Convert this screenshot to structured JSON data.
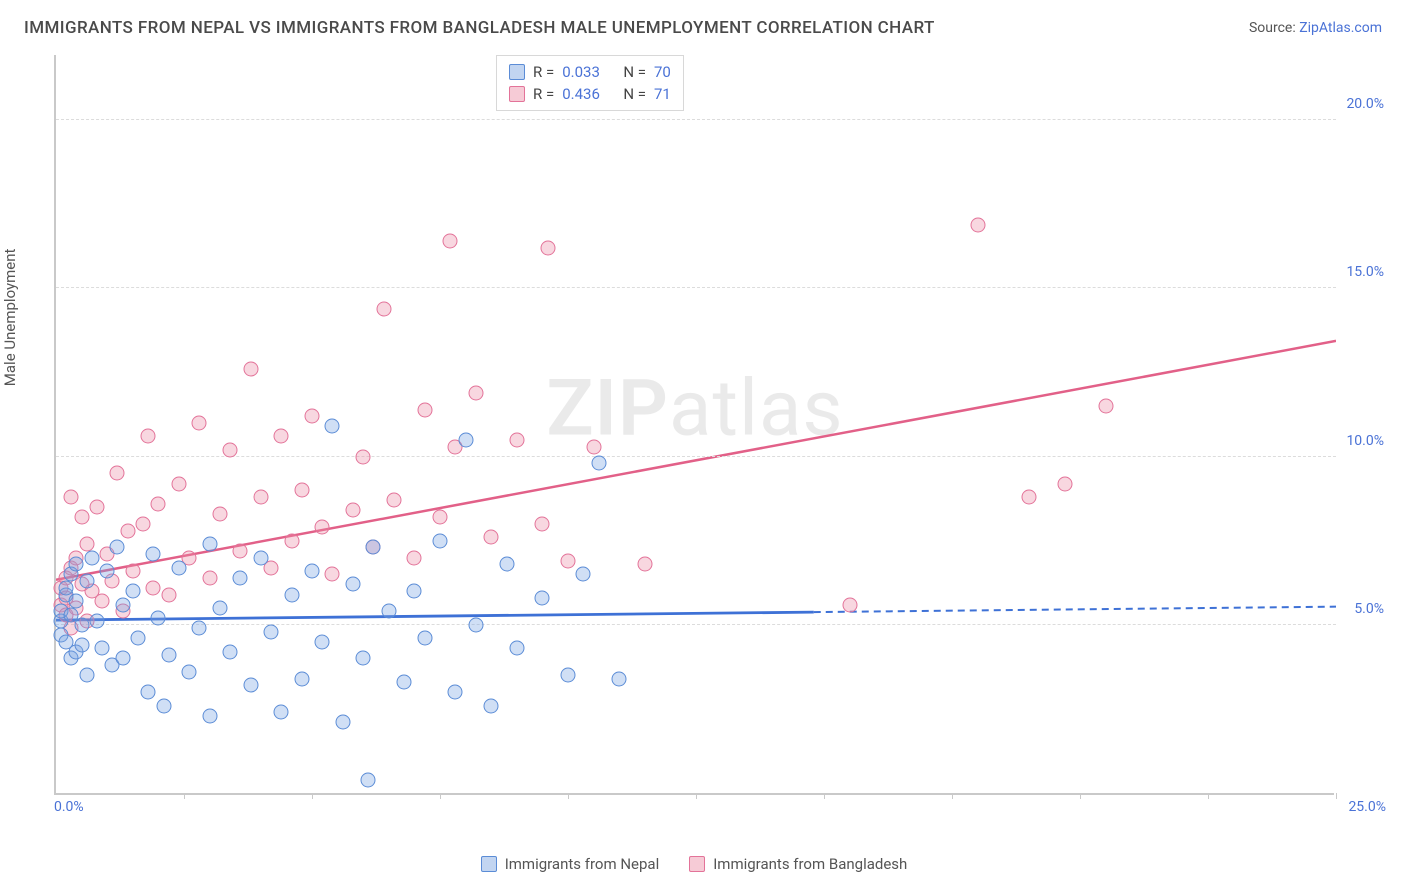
{
  "title": "IMMIGRANTS FROM NEPAL VS IMMIGRANTS FROM BANGLADESH MALE UNEMPLOYMENT CORRELATION CHART",
  "source_label": "Source: ",
  "source_name": "ZipAtlas.com",
  "ylabel": "Male Unemployment",
  "watermark_bold": "ZIP",
  "watermark_rest": "atlas",
  "chart": {
    "type": "scatter",
    "xlim": [
      0,
      25
    ],
    "ylim": [
      0,
      22
    ],
    "x_origin_label": "0.0%",
    "x_max_label": "25.0%",
    "x_tick_step": 2.5,
    "y_ticks": [
      5,
      10,
      15,
      20
    ],
    "y_tick_labels": [
      "5.0%",
      "10.0%",
      "15.0%",
      "20.0%"
    ],
    "grid_color": "#dcdcdc",
    "axis_color": "#c9c9c9",
    "background_color": "#ffffff",
    "label_fontsize": 15,
    "tick_fontsize": 14,
    "tick_color": "#4a72d6",
    "series_a": {
      "name": "Immigrants from Nepal",
      "fill": "rgba(120,162,225,0.35)",
      "stroke": "#5b8cd6",
      "marker_radius": 7.5,
      "R": "0.033",
      "N": "70",
      "trend": {
        "x1": 0,
        "y1": 5.2,
        "x2": 25,
        "y2": 5.6,
        "dashed_from_x": 14.8,
        "color": "#3e71d6",
        "width": 2.8
      },
      "points": [
        [
          0.1,
          5.1
        ],
        [
          0.1,
          5.4
        ],
        [
          0.1,
          4.7
        ],
        [
          0.2,
          5.9
        ],
        [
          0.2,
          4.5
        ],
        [
          0.2,
          6.1
        ],
        [
          0.3,
          5.3
        ],
        [
          0.3,
          4.0
        ],
        [
          0.3,
          6.5
        ],
        [
          0.4,
          5.7
        ],
        [
          0.4,
          4.2
        ],
        [
          0.4,
          6.8
        ],
        [
          0.5,
          5.0
        ],
        [
          0.5,
          4.4
        ],
        [
          0.6,
          6.3
        ],
        [
          0.6,
          3.5
        ],
        [
          0.7,
          7.0
        ],
        [
          0.8,
          5.1
        ],
        [
          0.9,
          4.3
        ],
        [
          1.0,
          6.6
        ],
        [
          1.1,
          3.8
        ],
        [
          1.2,
          7.3
        ],
        [
          1.3,
          5.6
        ],
        [
          1.3,
          4.0
        ],
        [
          1.5,
          6.0
        ],
        [
          1.6,
          4.6
        ],
        [
          1.8,
          3.0
        ],
        [
          1.9,
          7.1
        ],
        [
          2.0,
          5.2
        ],
        [
          2.1,
          2.6
        ],
        [
          2.2,
          4.1
        ],
        [
          2.4,
          6.7
        ],
        [
          2.6,
          3.6
        ],
        [
          2.8,
          4.9
        ],
        [
          3.0,
          7.4
        ],
        [
          3.0,
          2.3
        ],
        [
          3.2,
          5.5
        ],
        [
          3.4,
          4.2
        ],
        [
          3.6,
          6.4
        ],
        [
          3.8,
          3.2
        ],
        [
          4.0,
          7.0
        ],
        [
          4.2,
          4.8
        ],
        [
          4.4,
          2.4
        ],
        [
          4.6,
          5.9
        ],
        [
          4.8,
          3.4
        ],
        [
          5.0,
          6.6
        ],
        [
          5.2,
          4.5
        ],
        [
          5.4,
          10.9
        ],
        [
          5.6,
          2.1
        ],
        [
          5.8,
          6.2
        ],
        [
          6.0,
          4.0
        ],
        [
          6.1,
          0.4
        ],
        [
          6.2,
          7.3
        ],
        [
          6.5,
          5.4
        ],
        [
          6.8,
          3.3
        ],
        [
          7.0,
          6.0
        ],
        [
          7.2,
          4.6
        ],
        [
          7.5,
          7.5
        ],
        [
          7.8,
          3.0
        ],
        [
          8.0,
          10.5
        ],
        [
          8.2,
          5.0
        ],
        [
          8.5,
          2.6
        ],
        [
          8.8,
          6.8
        ],
        [
          9.0,
          4.3
        ],
        [
          9.5,
          5.8
        ],
        [
          10.0,
          3.5
        ],
        [
          10.3,
          6.5
        ],
        [
          10.6,
          9.8
        ],
        [
          11.0,
          3.4
        ]
      ]
    },
    "series_b": {
      "name": "Immigrants from Bangladesh",
      "fill": "rgba(235,140,165,0.35)",
      "stroke": "#e37399",
      "marker_radius": 7.5,
      "R": "0.436",
      "N": "71",
      "trend": {
        "x1": 0,
        "y1": 6.4,
        "x2": 25,
        "y2": 13.5,
        "color": "#e26088",
        "width": 2.5
      },
      "points": [
        [
          0.1,
          5.6
        ],
        [
          0.1,
          6.1
        ],
        [
          0.2,
          5.3
        ],
        [
          0.2,
          6.4
        ],
        [
          0.2,
          5.8
        ],
        [
          0.3,
          4.9
        ],
        [
          0.3,
          6.7
        ],
        [
          0.3,
          8.8
        ],
        [
          0.4,
          5.5
        ],
        [
          0.4,
          7.0
        ],
        [
          0.5,
          6.2
        ],
        [
          0.5,
          8.2
        ],
        [
          0.6,
          5.1
        ],
        [
          0.6,
          7.4
        ],
        [
          0.7,
          6.0
        ],
        [
          0.8,
          8.5
        ],
        [
          0.9,
          5.7
        ],
        [
          1.0,
          7.1
        ],
        [
          1.1,
          6.3
        ],
        [
          1.2,
          9.5
        ],
        [
          1.3,
          5.4
        ],
        [
          1.4,
          7.8
        ],
        [
          1.5,
          6.6
        ],
        [
          1.7,
          8.0
        ],
        [
          1.8,
          10.6
        ],
        [
          1.9,
          6.1
        ],
        [
          2.0,
          8.6
        ],
        [
          2.2,
          5.9
        ],
        [
          2.4,
          9.2
        ],
        [
          2.6,
          7.0
        ],
        [
          2.8,
          11.0
        ],
        [
          3.0,
          6.4
        ],
        [
          3.2,
          8.3
        ],
        [
          3.4,
          10.2
        ],
        [
          3.6,
          7.2
        ],
        [
          3.8,
          12.6
        ],
        [
          4.0,
          8.8
        ],
        [
          4.2,
          6.7
        ],
        [
          4.4,
          10.6
        ],
        [
          4.6,
          7.5
        ],
        [
          4.8,
          9.0
        ],
        [
          5.0,
          11.2
        ],
        [
          5.2,
          7.9
        ],
        [
          5.4,
          6.5
        ],
        [
          5.8,
          8.4
        ],
        [
          6.0,
          10.0
        ],
        [
          6.2,
          7.3
        ],
        [
          6.4,
          14.4
        ],
        [
          6.6,
          8.7
        ],
        [
          7.0,
          7.0
        ],
        [
          7.2,
          11.4
        ],
        [
          7.5,
          8.2
        ],
        [
          7.7,
          16.4
        ],
        [
          7.8,
          10.3
        ],
        [
          8.2,
          11.9
        ],
        [
          8.5,
          7.6
        ],
        [
          9.0,
          10.5
        ],
        [
          9.5,
          8.0
        ],
        [
          9.6,
          16.2
        ],
        [
          10.0,
          6.9
        ],
        [
          10.5,
          10.3
        ],
        [
          11.5,
          6.8
        ],
        [
          15.5,
          5.6
        ],
        [
          18.0,
          16.9
        ],
        [
          19.0,
          8.8
        ],
        [
          19.7,
          9.2
        ],
        [
          20.5,
          11.5
        ]
      ]
    }
  },
  "rn_legend": {
    "r_label": "R = ",
    "n_label": "N = "
  },
  "bottom_legend": {
    "a": "Immigrants from Nepal",
    "b": "Immigrants from Bangladesh"
  }
}
